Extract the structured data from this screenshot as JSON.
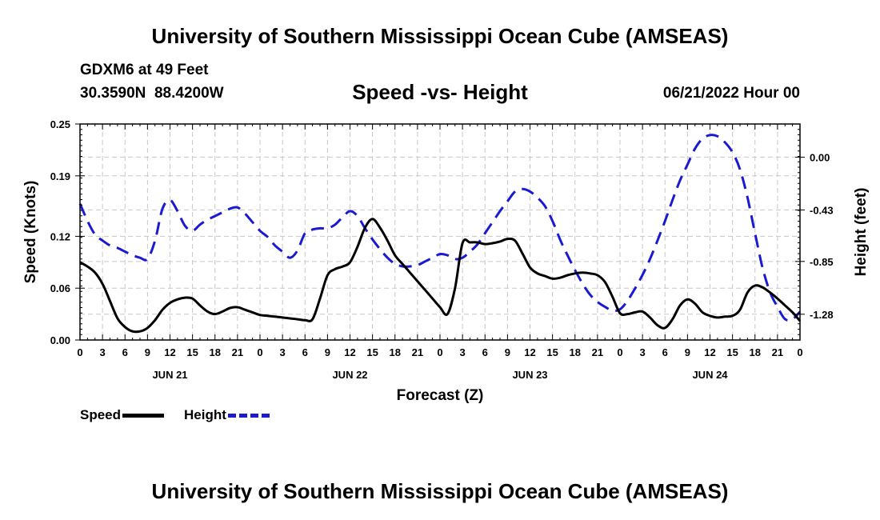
{
  "header": {
    "title": "University of Southern Mississippi Ocean Cube (AMSEAS)",
    "station": "GDXM6 at 49 Feet",
    "coords": "30.3590N  88.4200W",
    "subtitle": "Speed -vs- Height",
    "datetime": "06/21/2022 Hour 00"
  },
  "footer": {
    "title": "University of Southern Mississippi Ocean Cube (AMSEAS)"
  },
  "legend": {
    "speed": "Speed",
    "height": "Height"
  },
  "colors": {
    "speed": "#000000",
    "height": "#1a1ad0"
  },
  "chart_data": {
    "type": "line",
    "title": "Speed -vs- Height",
    "xlabel": "Forecast (Z)",
    "ylabel": "Speed (Knots)",
    "y2label": "Height (feet)",
    "xlim": [
      0,
      96
    ],
    "ylim": [
      0,
      0.25
    ],
    "y2lim": [
      -1.49,
      0.27
    ],
    "x_ticks": [
      {
        "pos": 0,
        "label": "0"
      },
      {
        "pos": 3,
        "label": "3"
      },
      {
        "pos": 6,
        "label": "6"
      },
      {
        "pos": 9,
        "label": "9"
      },
      {
        "pos": 12,
        "label": "12"
      },
      {
        "pos": 15,
        "label": "15"
      },
      {
        "pos": 18,
        "label": "18"
      },
      {
        "pos": 21,
        "label": "21"
      },
      {
        "pos": 24,
        "label": "0"
      },
      {
        "pos": 27,
        "label": "3"
      },
      {
        "pos": 30,
        "label": "6"
      },
      {
        "pos": 33,
        "label": "9"
      },
      {
        "pos": 36,
        "label": "12"
      },
      {
        "pos": 39,
        "label": "15"
      },
      {
        "pos": 42,
        "label": "18"
      },
      {
        "pos": 45,
        "label": "21"
      },
      {
        "pos": 48,
        "label": "0"
      },
      {
        "pos": 51,
        "label": "3"
      },
      {
        "pos": 54,
        "label": "6"
      },
      {
        "pos": 57,
        "label": "9"
      },
      {
        "pos": 60,
        "label": "12"
      },
      {
        "pos": 63,
        "label": "15"
      },
      {
        "pos": 66,
        "label": "18"
      },
      {
        "pos": 69,
        "label": "21"
      },
      {
        "pos": 72,
        "label": "0"
      },
      {
        "pos": 75,
        "label": "3"
      },
      {
        "pos": 78,
        "label": "6"
      },
      {
        "pos": 81,
        "label": "9"
      },
      {
        "pos": 84,
        "label": "12"
      },
      {
        "pos": 87,
        "label": "15"
      },
      {
        "pos": 90,
        "label": "18"
      },
      {
        "pos": 93,
        "label": "21"
      },
      {
        "pos": 96,
        "label": "0"
      }
    ],
    "day_labels": [
      {
        "pos": 12,
        "label": "JUN 21"
      },
      {
        "pos": 36,
        "label": "JUN 22"
      },
      {
        "pos": 60,
        "label": "JUN 23"
      },
      {
        "pos": 84,
        "label": "JUN 24"
      }
    ],
    "y_ticks": [
      0.0,
      0.06,
      0.12,
      0.19,
      0.25
    ],
    "y_tick_labels": [
      "0.00",
      "0.06",
      "0.12",
      "0.19",
      "0.25"
    ],
    "y2_ticks": [
      0.0,
      -0.43,
      -0.85,
      -1.28
    ],
    "y2_tick_labels": [
      "0.00",
      "-0.43",
      "-0.85",
      "-1.28"
    ],
    "series": [
      {
        "name": "Speed",
        "axis": "left",
        "style": "solid",
        "points": [
          [
            0,
            0.09
          ],
          [
            1,
            0.085
          ],
          [
            2,
            0.078
          ],
          [
            3,
            0.065
          ],
          [
            4,
            0.045
          ],
          [
            5,
            0.025
          ],
          [
            6,
            0.015
          ],
          [
            7,
            0.01
          ],
          [
            8,
            0.01
          ],
          [
            9,
            0.014
          ],
          [
            10,
            0.023
          ],
          [
            11,
            0.035
          ],
          [
            12,
            0.043
          ],
          [
            13,
            0.047
          ],
          [
            14,
            0.049
          ],
          [
            15,
            0.048
          ],
          [
            16,
            0.04
          ],
          [
            17,
            0.033
          ],
          [
            18,
            0.03
          ],
          [
            19,
            0.033
          ],
          [
            20,
            0.037
          ],
          [
            21,
            0.038
          ],
          [
            22,
            0.035
          ],
          [
            23,
            0.032
          ],
          [
            24,
            0.029
          ],
          [
            25,
            0.028
          ],
          [
            26,
            0.027
          ],
          [
            27,
            0.026
          ],
          [
            28,
            0.025
          ],
          [
            29,
            0.024
          ],
          [
            30,
            0.023
          ],
          [
            31,
            0.024
          ],
          [
            32,
            0.048
          ],
          [
            33,
            0.075
          ],
          [
            34,
            0.082
          ],
          [
            35,
            0.085
          ],
          [
            36,
            0.09
          ],
          [
            37,
            0.108
          ],
          [
            38,
            0.13
          ],
          [
            39,
            0.14
          ],
          [
            40,
            0.13
          ],
          [
            41,
            0.115
          ],
          [
            42,
            0.098
          ],
          [
            43,
            0.088
          ],
          [
            44,
            0.078
          ],
          [
            45,
            0.068
          ],
          [
            46,
            0.058
          ],
          [
            47,
            0.048
          ],
          [
            48,
            0.038
          ],
          [
            49,
            0.03
          ],
          [
            50,
            0.06
          ],
          [
            51,
            0.112
          ],
          [
            52,
            0.113
          ],
          [
            53,
            0.113
          ],
          [
            54,
            0.111
          ],
          [
            55,
            0.112
          ],
          [
            56,
            0.114
          ],
          [
            57,
            0.117
          ],
          [
            58,
            0.115
          ],
          [
            59,
            0.1
          ],
          [
            60,
            0.084
          ],
          [
            61,
            0.077
          ],
          [
            62,
            0.074
          ],
          [
            63,
            0.071
          ],
          [
            64,
            0.072
          ],
          [
            65,
            0.075
          ],
          [
            66,
            0.077
          ],
          [
            67,
            0.078
          ],
          [
            68,
            0.077
          ],
          [
            69,
            0.075
          ],
          [
            70,
            0.067
          ],
          [
            71,
            0.05
          ],
          [
            72,
            0.031
          ],
          [
            73,
            0.03
          ],
          [
            74,
            0.032
          ],
          [
            75,
            0.033
          ],
          [
            76,
            0.026
          ],
          [
            77,
            0.017
          ],
          [
            78,
            0.014
          ],
          [
            79,
            0.024
          ],
          [
            80,
            0.04
          ],
          [
            81,
            0.047
          ],
          [
            82,
            0.042
          ],
          [
            83,
            0.032
          ],
          [
            84,
            0.028
          ],
          [
            85,
            0.026
          ],
          [
            86,
            0.027
          ],
          [
            87,
            0.028
          ],
          [
            88,
            0.035
          ],
          [
            89,
            0.055
          ],
          [
            90,
            0.063
          ],
          [
            91,
            0.061
          ],
          [
            92,
            0.055
          ],
          [
            93,
            0.048
          ],
          [
            94,
            0.04
          ],
          [
            95,
            0.032
          ],
          [
            96,
            0.022
          ]
        ]
      },
      {
        "name": "Height",
        "axis": "right",
        "style": "dashed",
        "points": [
          [
            0,
            -0.38
          ],
          [
            1,
            -0.52
          ],
          [
            2,
            -0.63
          ],
          [
            3,
            -0.68
          ],
          [
            4,
            -0.72
          ],
          [
            5,
            -0.74
          ],
          [
            6,
            -0.77
          ],
          [
            7,
            -0.8
          ],
          [
            8,
            -0.82
          ],
          [
            9,
            -0.83
          ],
          [
            10,
            -0.68
          ],
          [
            11,
            -0.42
          ],
          [
            12,
            -0.35
          ],
          [
            13,
            -0.44
          ],
          [
            14,
            -0.56
          ],
          [
            15,
            -0.6
          ],
          [
            16,
            -0.55
          ],
          [
            17,
            -0.51
          ],
          [
            18,
            -0.48
          ],
          [
            19,
            -0.45
          ],
          [
            20,
            -0.42
          ],
          [
            21,
            -0.41
          ],
          [
            22,
            -0.46
          ],
          [
            23,
            -0.53
          ],
          [
            24,
            -0.6
          ],
          [
            25,
            -0.65
          ],
          [
            26,
            -0.72
          ],
          [
            27,
            -0.77
          ],
          [
            28,
            -0.82
          ],
          [
            29,
            -0.76
          ],
          [
            30,
            -0.62
          ],
          [
            31,
            -0.59
          ],
          [
            32,
            -0.58
          ],
          [
            33,
            -0.58
          ],
          [
            34,
            -0.55
          ],
          [
            35,
            -0.49
          ],
          [
            36,
            -0.44
          ],
          [
            37,
            -0.48
          ],
          [
            38,
            -0.58
          ],
          [
            39,
            -0.67
          ],
          [
            40,
            -0.75
          ],
          [
            41,
            -0.82
          ],
          [
            42,
            -0.87
          ],
          [
            43,
            -0.89
          ],
          [
            44,
            -0.89
          ],
          [
            45,
            -0.88
          ],
          [
            46,
            -0.85
          ],
          [
            47,
            -0.82
          ],
          [
            48,
            -0.79
          ],
          [
            49,
            -0.8
          ],
          [
            50,
            -0.83
          ],
          [
            51,
            -0.82
          ],
          [
            52,
            -0.77
          ],
          [
            53,
            -0.71
          ],
          [
            54,
            -0.62
          ],
          [
            55,
            -0.53
          ],
          [
            56,
            -0.44
          ],
          [
            57,
            -0.36
          ],
          [
            58,
            -0.28
          ],
          [
            59,
            -0.26
          ],
          [
            60,
            -0.28
          ],
          [
            61,
            -0.33
          ],
          [
            62,
            -0.4
          ],
          [
            63,
            -0.52
          ],
          [
            64,
            -0.67
          ],
          [
            65,
            -0.8
          ],
          [
            66,
            -0.92
          ],
          [
            67,
            -1.03
          ],
          [
            68,
            -1.12
          ],
          [
            69,
            -1.18
          ],
          [
            70,
            -1.22
          ],
          [
            71,
            -1.25
          ],
          [
            72,
            -1.24
          ],
          [
            73,
            -1.17
          ],
          [
            74,
            -1.07
          ],
          [
            75,
            -0.96
          ],
          [
            76,
            -0.83
          ],
          [
            77,
            -0.68
          ],
          [
            78,
            -0.52
          ],
          [
            79,
            -0.35
          ],
          [
            80,
            -0.19
          ],
          [
            81,
            -0.06
          ],
          [
            82,
            0.07
          ],
          [
            83,
            0.15
          ],
          [
            84,
            0.18
          ],
          [
            85,
            0.17
          ],
          [
            86,
            0.12
          ],
          [
            87,
            0.04
          ],
          [
            88,
            -0.1
          ],
          [
            89,
            -0.33
          ],
          [
            90,
            -0.62
          ],
          [
            91,
            -0.9
          ],
          [
            92,
            -1.1
          ],
          [
            93,
            -1.22
          ],
          [
            94,
            -1.32
          ],
          [
            95,
            -1.32
          ],
          [
            96,
            -1.26
          ]
        ]
      }
    ]
  }
}
